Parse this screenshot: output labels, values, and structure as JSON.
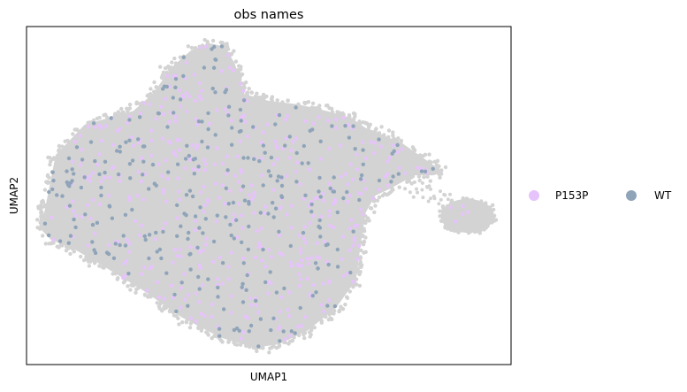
{
  "chart_data": {
    "type": "scatter",
    "title": "obs names",
    "xlabel": "UMAP1",
    "ylabel": "UMAP2",
    "grid": false,
    "ticks": false,
    "legend": {
      "placement": "right",
      "layout": "horizontal",
      "entries": [
        {
          "name": "P153P",
          "color": "#e6c3fb"
        },
        {
          "name": "WT",
          "color": "#8fa4b9"
        }
      ]
    },
    "background_cells_color": "#d3d3d3",
    "xlim": [
      0,
      100
    ],
    "ylim": [
      0,
      100
    ],
    "series": [
      {
        "name": "P153P",
        "color": "#e6c3fb",
        "approx_points": 450
      },
      {
        "name": "WT",
        "color": "#8fa4b9",
        "approx_points": 300
      }
    ],
    "cluster_outline": [
      [
        3,
        40
      ],
      [
        6,
        62
      ],
      [
        12,
        71
      ],
      [
        22,
        75
      ],
      [
        26,
        80
      ],
      [
        30,
        88
      ],
      [
        34,
        93
      ],
      [
        38,
        95
      ],
      [
        41,
        94
      ],
      [
        43,
        89
      ],
      [
        45,
        80
      ],
      [
        50,
        78
      ],
      [
        56,
        77
      ],
      [
        62,
        75
      ],
      [
        67,
        73
      ],
      [
        70,
        70
      ],
      [
        72,
        69
      ],
      [
        75,
        67
      ],
      [
        77,
        66
      ],
      [
        80,
        63
      ],
      [
        82,
        61
      ],
      [
        84,
        59
      ],
      [
        86,
        57
      ],
      [
        84,
        56
      ],
      [
        80,
        56
      ],
      [
        75,
        52
      ],
      [
        72,
        50
      ],
      [
        70,
        45
      ],
      [
        69,
        36
      ],
      [
        68,
        25
      ],
      [
        64,
        17
      ],
      [
        58,
        10
      ],
      [
        52,
        6
      ],
      [
        47,
        5
      ],
      [
        40,
        8
      ],
      [
        32,
        14
      ],
      [
        24,
        22
      ],
      [
        16,
        29
      ],
      [
        10,
        34
      ],
      [
        5,
        37
      ]
    ],
    "satellite_cluster": {
      "center": [
        91,
        44
      ],
      "radius_x": 5.5,
      "radius_y": 5
    }
  }
}
